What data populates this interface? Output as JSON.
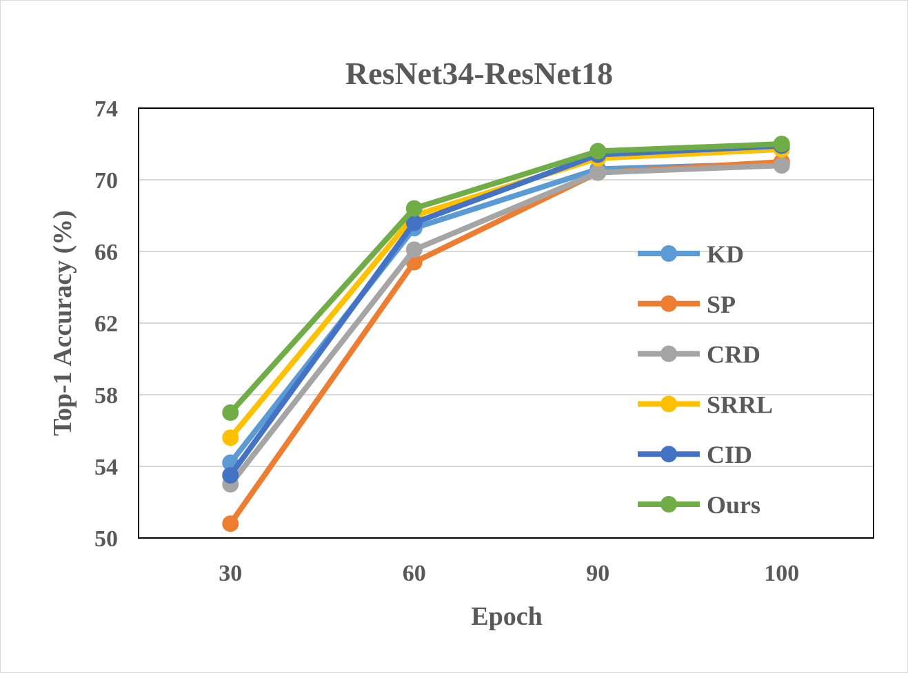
{
  "chart_data": {
    "type": "line",
    "title": "ResNet34-ResNet18",
    "xlabel": "Epoch",
    "ylabel": "Top-1 Accuracy (%)",
    "categories": [
      "30",
      "60",
      "90",
      "100"
    ],
    "ylim": [
      50,
      74
    ],
    "yticks": [
      "50",
      "54",
      "58",
      "62",
      "66",
      "70",
      "74"
    ],
    "grid": "horizontal",
    "legend_position": "right",
    "series": [
      {
        "name": "KD",
        "color": "#5b9bd5",
        "values": [
          54.2,
          67.3,
          70.6,
          70.9
        ]
      },
      {
        "name": "SP",
        "color": "#ed7d31",
        "values": [
          50.8,
          65.4,
          70.4,
          71.0
        ]
      },
      {
        "name": "CRD",
        "color": "#a5a5a5",
        "values": [
          53.0,
          66.1,
          70.4,
          70.8
        ]
      },
      {
        "name": "SRRL",
        "color": "#ffc000",
        "values": [
          55.6,
          68.0,
          71.2,
          71.7
        ]
      },
      {
        "name": "CID",
        "color": "#4472c4",
        "values": [
          53.5,
          67.6,
          71.4,
          71.9
        ]
      },
      {
        "name": "Ours",
        "color": "#70ad47",
        "values": [
          57.0,
          68.4,
          71.6,
          72.0
        ]
      }
    ]
  }
}
